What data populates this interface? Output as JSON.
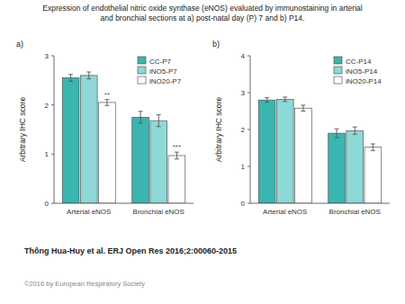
{
  "title": [
    "Expression of endothelial nitric oxide synthase (eNOS) evaluated by immunostaining in arterial",
    "and bronchial sections at a) post-natal day (P) 7 and b) P14."
  ],
  "annotations": [
    "Thông Hua-Huy et al. ERJ Open Res 2016;2:00060-2015",
    "©2016 by European Respiratory Society"
  ],
  "chart_data": [
    {
      "type": "bar",
      "title": "a)",
      "ylabel": "Arbitrary IHC score",
      "categories": [
        "Arterial eNOS",
        "Bronchial eNOS"
      ],
      "series": [
        {
          "name": "CC-P7",
          "color": "#3ab5b0",
          "values": [
            2.55,
            1.75
          ],
          "errors": [
            0.07,
            0.12
          ]
        },
        {
          "name": "iNO5-P7",
          "color": "#8ed8d5",
          "values": [
            2.6,
            1.68
          ],
          "errors": [
            0.07,
            0.12
          ]
        },
        {
          "name": "iNO20-P7",
          "color": "#ffffff",
          "values": [
            2.05,
            0.97
          ],
          "errors": [
            0.06,
            0.07
          ],
          "annotations": [
            "**",
            "***"
          ]
        }
      ],
      "ylim": [
        0,
        3
      ],
      "yticks": [
        0,
        1,
        2,
        3
      ],
      "grid": false,
      "legend": "upper right"
    },
    {
      "type": "bar",
      "title": "b)",
      "ylabel": "Arbitrary IHC score",
      "categories": [
        "Arterial eNOS",
        "Bronchial eNOS"
      ],
      "series": [
        {
          "name": "CC-P14",
          "color": "#3ab5b0",
          "values": [
            2.8,
            1.9
          ],
          "errors": [
            0.06,
            0.12
          ]
        },
        {
          "name": "iNO5-P14",
          "color": "#8ed8d5",
          "values": [
            2.82,
            1.97
          ],
          "errors": [
            0.06,
            0.1
          ]
        },
        {
          "name": "iNO20-P14",
          "color": "#ffffff",
          "values": [
            2.58,
            1.52
          ],
          "errors": [
            0.08,
            0.09
          ]
        }
      ],
      "ylim": [
        0,
        4
      ],
      "yticks": [
        0,
        1,
        2,
        3,
        4
      ],
      "grid": false,
      "legend": "upper right"
    }
  ]
}
